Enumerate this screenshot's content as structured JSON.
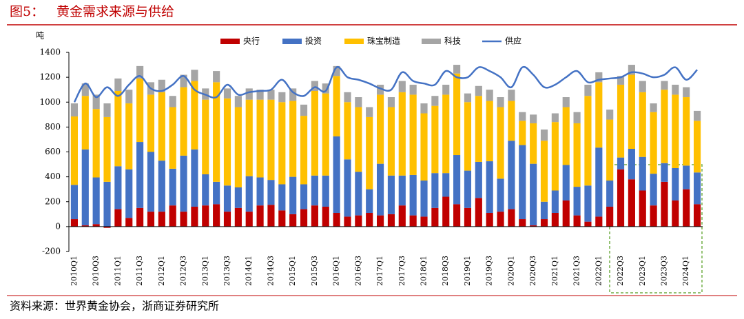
{
  "chart_data": {
    "type": "bar",
    "stacked": true,
    "figure_label": "图5：",
    "title": "黄金需求来源与供给",
    "y_label": "吨",
    "source": "资料来源：世界黄金协会，浙商证券研究所",
    "ylim": [
      -200,
      1400
    ],
    "yticks": [
      -200,
      0,
      200,
      400,
      600,
      800,
      1000,
      1200,
      1400
    ],
    "grid": false,
    "categories": [
      "2010Q1",
      null,
      "2010Q3",
      null,
      "2011Q1",
      null,
      "2011Q3",
      null,
      "2012Q1",
      null,
      "2012Q3",
      null,
      "2013Q1",
      null,
      "2013Q3",
      null,
      "2014Q1",
      null,
      "2014Q3",
      null,
      "2015Q1",
      null,
      "2015Q3",
      null,
      "2016Q1",
      null,
      "2016Q3",
      null,
      "2017Q1",
      null,
      "2017Q3",
      null,
      "2018Q1",
      null,
      "2018Q3",
      null,
      "2019Q1",
      null,
      "2019Q3",
      null,
      "2020Q1",
      null,
      "2020Q3",
      null,
      "2021Q1",
      null,
      "2021Q3",
      null,
      "2022Q1",
      null,
      "2022Q3",
      null,
      "2023Q1",
      null,
      "2023Q3",
      null,
      "2024Q1",
      null
    ],
    "series": [
      {
        "name": "央行",
        "color": "#c00000",
        "type": "bar",
        "values": [
          60,
          10,
          20,
          -10,
          140,
          70,
          150,
          120,
          120,
          170,
          120,
          160,
          170,
          180,
          120,
          150,
          120,
          170,
          175,
          130,
          100,
          140,
          170,
          160,
          110,
          80,
          90,
          110,
          90,
          100,
          170,
          90,
          80,
          150,
          240,
          180,
          150,
          230,
          110,
          120,
          140,
          60,
          10,
          60,
          110,
          210,
          90,
          40,
          80,
          160,
          460,
          380,
          290,
          170,
          360,
          210,
          300,
          180
        ]
      },
      {
        "name": "投资",
        "color": "#4472c4",
        "type": "bar",
        "values": [
          275,
          610,
          375,
          360,
          345,
          390,
          530,
          480,
          410,
          295,
          450,
          460,
          250,
          180,
          210,
          165,
          285,
          225,
          200,
          210,
          300,
          200,
          240,
          250,
          615,
          460,
          350,
          190,
          415,
          310,
          240,
          325,
          290,
          280,
          190,
          395,
          300,
          290,
          415,
          265,
          550,
          595,
          495,
          140,
          180,
          285,
          230,
          290,
          555,
          210,
          95,
          245,
          270,
          255,
          150,
          260,
          190,
          255
        ]
      },
      {
        "name": "珠宝制造",
        "color": "#ffc000",
        "type": "bar",
        "values": [
          550,
          430,
          550,
          520,
          605,
          530,
          510,
          460,
          550,
          495,
          550,
          550,
          600,
          800,
          700,
          645,
          615,
          625,
          645,
          660,
          610,
          550,
          680,
          660,
          485,
          460,
          520,
          580,
          555,
          550,
          670,
          645,
          540,
          540,
          630,
          655,
          550,
          530,
          485,
          575,
          320,
          195,
          325,
          490,
          550,
          465,
          510,
          720,
          525,
          490,
          585,
          595,
          520,
          495,
          590,
          590,
          550,
          415
        ]
      },
      {
        "name": "科技",
        "color": "#a5a5a5",
        "type": "bar",
        "values": [
          105,
          100,
          115,
          110,
          100,
          110,
          100,
          100,
          100,
          90,
          100,
          90,
          90,
          90,
          80,
          90,
          90,
          80,
          80,
          80,
          100,
          90,
          80,
          80,
          80,
          80,
          80,
          80,
          80,
          80,
          90,
          80,
          80,
          80,
          80,
          70,
          70,
          80,
          90,
          80,
          90,
          70,
          70,
          90,
          70,
          80,
          90,
          90,
          80,
          80,
          70,
          80,
          90,
          70,
          70,
          80,
          80,
          80
        ]
      },
      {
        "name": "供应",
        "color": "#4472c4",
        "type": "line",
        "values": [
          1000,
          1150,
          1040,
          1120,
          1050,
          1140,
          1210,
          1110,
          1090,
          1140,
          1210,
          1100,
          1060,
          1040,
          1140,
          1060,
          1080,
          1090,
          1100,
          1180,
          1080,
          1050,
          1120,
          1090,
          1280,
          1200,
          1180,
          1150,
          1110,
          1100,
          1240,
          1170,
          1150,
          1140,
          1250,
          1200,
          1200,
          1280,
          1250,
          1200,
          1120,
          1280,
          1220,
          1120,
          1140,
          1200,
          1250,
          1160,
          1180,
          1190,
          1200,
          1240,
          1230,
          1200,
          1220,
          1280,
          1180,
          1260
        ]
      }
    ]
  }
}
